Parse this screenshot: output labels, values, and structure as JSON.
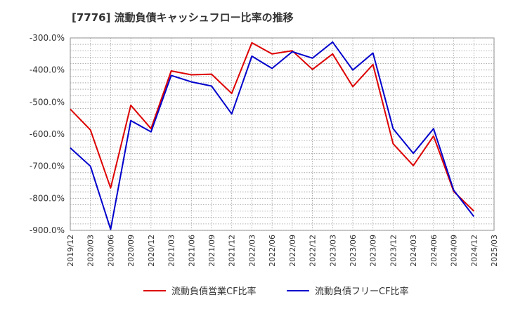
{
  "chart_data": {
    "type": "line",
    "title": "[7776]  流動負債キャッシュフロー比率の推移",
    "xlabel": "",
    "ylabel": "",
    "ylim": [
      -900,
      -300
    ],
    "yticks": [
      -300,
      -400,
      -500,
      -600,
      -700,
      -800,
      -900
    ],
    "ytick_labels": [
      "-300.0%",
      "-400.0%",
      "-500.0%",
      "-600.0%",
      "-700.0%",
      "-800.0%",
      "-900.0%"
    ],
    "x_ticks": [
      "2019/12",
      "2020/03",
      "2020/06",
      "2020/09",
      "2020/12",
      "2021/03",
      "2021/06",
      "2021/09",
      "2021/12",
      "2022/03",
      "2022/06",
      "2022/09",
      "2022/12",
      "2023/03",
      "2023/06",
      "2023/09",
      "2023/12",
      "2024/03",
      "2024/06",
      "2024/09",
      "2024/12",
      "2025/03"
    ],
    "grid": true,
    "legend_position": "bottom",
    "series": [
      {
        "name": "流動負債営業CF比率",
        "color": "#dd0000",
        "start_index": 0,
        "values": [
          -522,
          -587,
          -768,
          -510,
          -583,
          -403,
          -415,
          -413,
          -473,
          -315,
          -350,
          -340,
          -398,
          -350,
          -452,
          -383,
          -630,
          -698,
          -606,
          -779,
          -840
        ]
      },
      {
        "name": "流動負債フリーCF比率",
        "color": "#0000cc",
        "start_index": 0,
        "values": [
          -643,
          -700,
          -897,
          -558,
          -593,
          -417,
          -437,
          -450,
          -537,
          -357,
          -395,
          -343,
          -363,
          -313,
          -400,
          -347,
          -583,
          -660,
          -583,
          -775,
          -857
        ]
      }
    ]
  }
}
